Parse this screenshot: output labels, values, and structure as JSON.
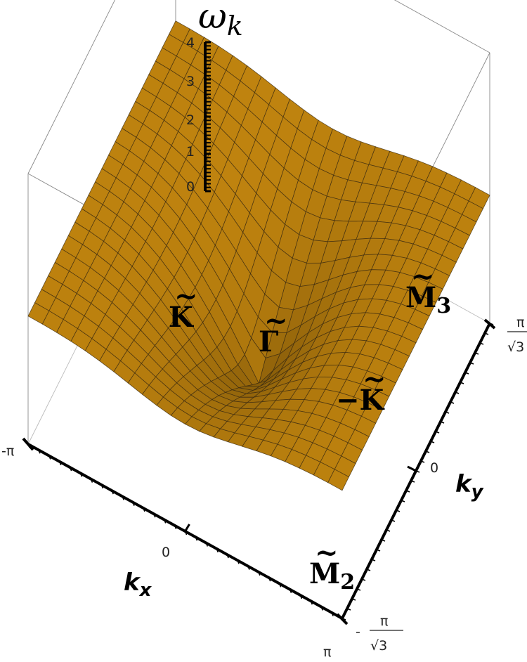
{
  "chart_data": {
    "type": "surface3d",
    "function": "omega_k",
    "z_label": "ω",
    "z_label_sub": "k",
    "x_label": "k",
    "x_label_sub": "x",
    "y_label": "k",
    "y_label_sub": "y",
    "x_range": [
      "-π",
      "π"
    ],
    "y_range": [
      "-π/√3",
      "π/√3"
    ],
    "z_range": [
      0,
      4
    ],
    "x_ticks": [
      "-π",
      "0",
      "π"
    ],
    "y_ticks": {
      "min_numerator": "π",
      "min_prefix": "-",
      "min_denominator": "√3",
      "mid": "0",
      "max_numerator": "π",
      "max_denominator": "√3"
    },
    "z_ticks": [
      "0",
      "1",
      "2",
      "3",
      "4"
    ],
    "special_points": [
      {
        "name": "K",
        "text": "K",
        "kx": -1.6,
        "ky": 0.95,
        "tilde": true,
        "prefix": ""
      },
      {
        "name": "Gamma",
        "text": "Γ",
        "kx": -0.05,
        "ky": 0.35,
        "tilde": true,
        "prefix": ""
      },
      {
        "name": "minus-K",
        "text": "K",
        "kx": 1.7,
        "ky": 0.45,
        "tilde": true,
        "prefix": "−"
      },
      {
        "name": "M3",
        "text": "M",
        "sub": "3",
        "kx": -1.1,
        "ky": 1.75,
        "tilde": true,
        "prefix": ""
      },
      {
        "name": "M2",
        "text": "M",
        "sub": "2",
        "kx": 2.9,
        "ky": 0.3,
        "tilde": true,
        "prefix": ""
      }
    ],
    "surface_color": "#f2a81a",
    "grid": true,
    "mesh_lines": 22
  }
}
